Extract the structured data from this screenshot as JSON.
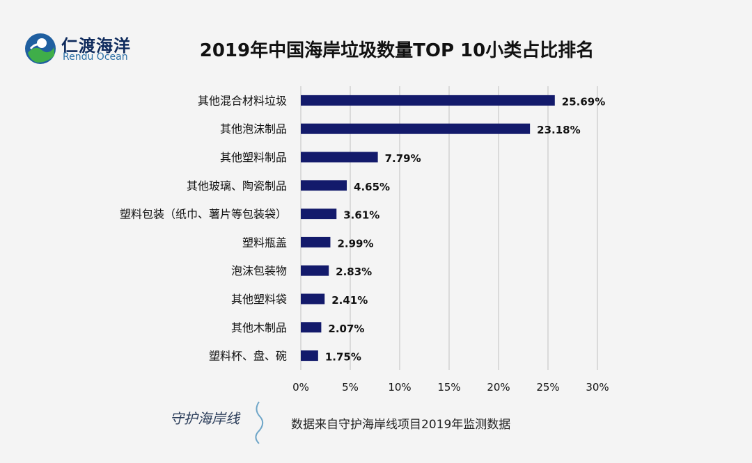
{
  "brand": {
    "name_cn": "仁渡海洋",
    "name_en": "Rendu Ocean",
    "footer_logo_text": "守护海岸线"
  },
  "footer": {
    "source": "数据来自守护海岸线项目2019年监测数据"
  },
  "colors": {
    "bar": "#131a6b",
    "grid": "#bfbfbf",
    "text": "#111111"
  },
  "chart_data": {
    "type": "bar",
    "orientation": "horizontal",
    "title": "2019年中国海岸垃圾数量TOP 10小类占比排名",
    "categories": [
      "其他混合材料垃圾",
      "其他泡沫制品",
      "其他塑料制品",
      "其他玻璃、陶瓷制品",
      "塑料包装（纸巾、薯片等包装袋）",
      "塑料瓶盖",
      "泡沫包装物",
      "其他塑料袋",
      "其他木制品",
      "塑料杯、盘、碗"
    ],
    "values": [
      25.69,
      23.18,
      7.79,
      4.65,
      3.61,
      2.99,
      2.83,
      2.41,
      2.07,
      1.75
    ],
    "value_labels": [
      "25.69%",
      "23.18%",
      "7.79%",
      "4.65%",
      "3.61%",
      "2.99%",
      "2.83%",
      "2.41%",
      "2.07%",
      "1.75%"
    ],
    "xlim": [
      0,
      30
    ],
    "xticks": [
      0,
      5,
      10,
      15,
      20,
      25,
      30
    ],
    "xtick_labels": [
      "0%",
      "5%",
      "10%",
      "15%",
      "20%",
      "25%",
      "30%"
    ],
    "xlabel": "",
    "ylabel": "",
    "grid": true,
    "legend": "none"
  }
}
